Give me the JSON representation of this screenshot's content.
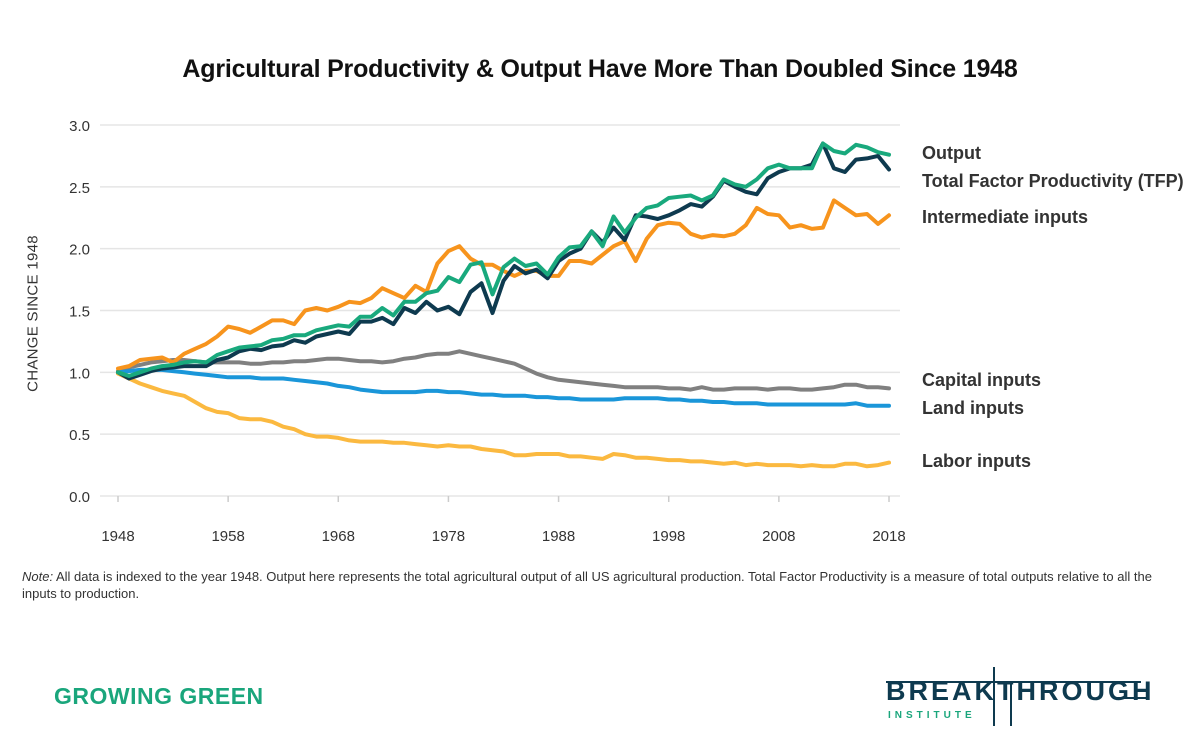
{
  "chart_data": {
    "type": "line",
    "title": "Agricultural Productivity & Output Have More Than Doubled Since 1948",
    "xlabel": "",
    "ylabel": "CHANGE SINCE 1948",
    "x_start": 1948,
    "x_end": 2018,
    "xlim": [
      1948,
      2018
    ],
    "ylim": [
      0,
      3.0
    ],
    "x_ticks": [
      "1948",
      "1958",
      "1968",
      "1978",
      "1988",
      "1998",
      "2008",
      "2018"
    ],
    "y_ticks": [
      "0.0",
      "0.5",
      "1.0",
      "1.5",
      "2.0",
      "2.5",
      "3.0"
    ],
    "grid": "horizontal",
    "legend": "right, inline labels",
    "series": [
      {
        "name": "Output",
        "color": "#19a97d",
        "values": [
          1.0,
          0.97,
          1.0,
          1.03,
          1.05,
          1.06,
          1.08,
          1.09,
          1.08,
          1.14,
          1.17,
          1.2,
          1.21,
          1.22,
          1.26,
          1.27,
          1.3,
          1.3,
          1.34,
          1.36,
          1.38,
          1.37,
          1.45,
          1.45,
          1.52,
          1.46,
          1.57,
          1.57,
          1.64,
          1.66,
          1.77,
          1.73,
          1.87,
          1.89,
          1.63,
          1.85,
          1.92,
          1.86,
          1.88,
          1.79,
          1.93,
          2.01,
          2.02,
          2.14,
          2.02,
          2.26,
          2.13,
          2.25,
          2.33,
          2.35,
          2.41,
          2.42,
          2.43,
          2.39,
          2.43,
          2.56,
          2.52,
          2.5,
          2.56,
          2.65,
          2.68,
          2.65,
          2.65,
          2.65,
          2.85,
          2.79,
          2.77,
          2.84,
          2.82,
          2.78,
          2.76
        ]
      },
      {
        "name": "Total Factor Productivity (TFP)",
        "color": "#0e3a4f",
        "values": [
          1.0,
          0.95,
          0.98,
          1.01,
          1.03,
          1.04,
          1.05,
          1.05,
          1.05,
          1.1,
          1.12,
          1.17,
          1.19,
          1.18,
          1.21,
          1.22,
          1.26,
          1.24,
          1.29,
          1.31,
          1.33,
          1.31,
          1.41,
          1.41,
          1.44,
          1.39,
          1.52,
          1.48,
          1.57,
          1.5,
          1.53,
          1.47,
          1.65,
          1.72,
          1.48,
          1.74,
          1.86,
          1.8,
          1.83,
          1.76,
          1.9,
          1.96,
          2.0,
          2.14,
          2.05,
          2.17,
          2.07,
          2.27,
          2.26,
          2.24,
          2.27,
          2.31,
          2.36,
          2.34,
          2.42,
          2.55,
          2.5,
          2.46,
          2.44,
          2.57,
          2.62,
          2.65,
          2.65,
          2.68,
          2.85,
          2.65,
          2.62,
          2.72,
          2.73,
          2.75,
          2.64
        ]
      },
      {
        "name": "Intermediate inputs",
        "color": "#f7941d",
        "values": [
          1.03,
          1.05,
          1.1,
          1.11,
          1.12,
          1.08,
          1.15,
          1.19,
          1.23,
          1.29,
          1.37,
          1.35,
          1.32,
          1.37,
          1.42,
          1.42,
          1.39,
          1.5,
          1.52,
          1.5,
          1.53,
          1.57,
          1.56,
          1.6,
          1.68,
          1.64,
          1.6,
          1.7,
          1.65,
          1.88,
          1.98,
          2.02,
          1.92,
          1.87,
          1.87,
          1.82,
          1.78,
          1.82,
          1.82,
          1.78,
          1.78,
          1.9,
          1.9,
          1.88,
          1.95,
          2.02,
          2.06,
          1.9,
          2.08,
          2.19,
          2.21,
          2.2,
          2.12,
          2.09,
          2.11,
          2.1,
          2.12,
          2.19,
          2.33,
          2.28,
          2.27,
          2.17,
          2.19,
          2.16,
          2.17,
          2.39,
          2.33,
          2.27,
          2.28,
          2.2,
          2.27
        ]
      },
      {
        "name": "Capital inputs",
        "color": "#808080",
        "values": [
          1.01,
          1.04,
          1.06,
          1.08,
          1.09,
          1.1,
          1.1,
          1.09,
          1.08,
          1.08,
          1.08,
          1.08,
          1.07,
          1.07,
          1.08,
          1.08,
          1.09,
          1.09,
          1.1,
          1.11,
          1.11,
          1.1,
          1.09,
          1.09,
          1.08,
          1.09,
          1.11,
          1.12,
          1.14,
          1.15,
          1.15,
          1.17,
          1.15,
          1.13,
          1.11,
          1.09,
          1.07,
          1.03,
          0.99,
          0.96,
          0.94,
          0.93,
          0.92,
          0.91,
          0.9,
          0.89,
          0.88,
          0.88,
          0.88,
          0.88,
          0.87,
          0.87,
          0.86,
          0.88,
          0.86,
          0.86,
          0.87,
          0.87,
          0.87,
          0.86,
          0.87,
          0.87,
          0.86,
          0.86,
          0.87,
          0.88,
          0.9,
          0.9,
          0.88,
          0.88,
          0.87
        ]
      },
      {
        "name": "Land inputs",
        "color": "#1a96d9",
        "values": [
          1.0,
          1.01,
          1.02,
          1.02,
          1.02,
          1.01,
          1.0,
          0.99,
          0.98,
          0.97,
          0.96,
          0.96,
          0.96,
          0.95,
          0.95,
          0.95,
          0.94,
          0.93,
          0.92,
          0.91,
          0.89,
          0.88,
          0.86,
          0.85,
          0.84,
          0.84,
          0.84,
          0.84,
          0.85,
          0.85,
          0.84,
          0.84,
          0.83,
          0.82,
          0.82,
          0.81,
          0.81,
          0.81,
          0.8,
          0.8,
          0.79,
          0.79,
          0.78,
          0.78,
          0.78,
          0.78,
          0.79,
          0.79,
          0.79,
          0.79,
          0.78,
          0.78,
          0.77,
          0.77,
          0.76,
          0.76,
          0.75,
          0.75,
          0.75,
          0.74,
          0.74,
          0.74,
          0.74,
          0.74,
          0.74,
          0.74,
          0.74,
          0.75,
          0.73,
          0.73,
          0.73
        ]
      },
      {
        "name": "Labor inputs",
        "color": "#fbb940",
        "values": [
          0.99,
          0.95,
          0.91,
          0.88,
          0.85,
          0.83,
          0.81,
          0.76,
          0.71,
          0.68,
          0.67,
          0.63,
          0.62,
          0.62,
          0.6,
          0.56,
          0.54,
          0.5,
          0.48,
          0.48,
          0.47,
          0.45,
          0.44,
          0.44,
          0.44,
          0.43,
          0.43,
          0.42,
          0.41,
          0.4,
          0.41,
          0.4,
          0.4,
          0.38,
          0.37,
          0.36,
          0.33,
          0.33,
          0.34,
          0.34,
          0.34,
          0.32,
          0.32,
          0.31,
          0.3,
          0.34,
          0.33,
          0.31,
          0.31,
          0.3,
          0.29,
          0.29,
          0.28,
          0.28,
          0.27,
          0.26,
          0.27,
          0.25,
          0.26,
          0.25,
          0.25,
          0.25,
          0.24,
          0.25,
          0.24,
          0.24,
          0.26,
          0.26,
          0.24,
          0.25,
          0.27
        ]
      }
    ]
  },
  "note": {
    "label": "Note:",
    "text": " All data is indexed to the year 1948. Output here represents the total agricultural output of all US agricultural production. Total Factor Productivity is a measure of total outputs relative to all the inputs to production."
  },
  "footer": {
    "left_brand": "GROWING GREEN",
    "logo_main": "BREAKTHROUGH",
    "logo_sub": "INSTITUTE"
  },
  "colors": {
    "grid": "#e5e5e5",
    "brand_green": "#1aa67c",
    "brand_navy": "#0e3a4f"
  }
}
